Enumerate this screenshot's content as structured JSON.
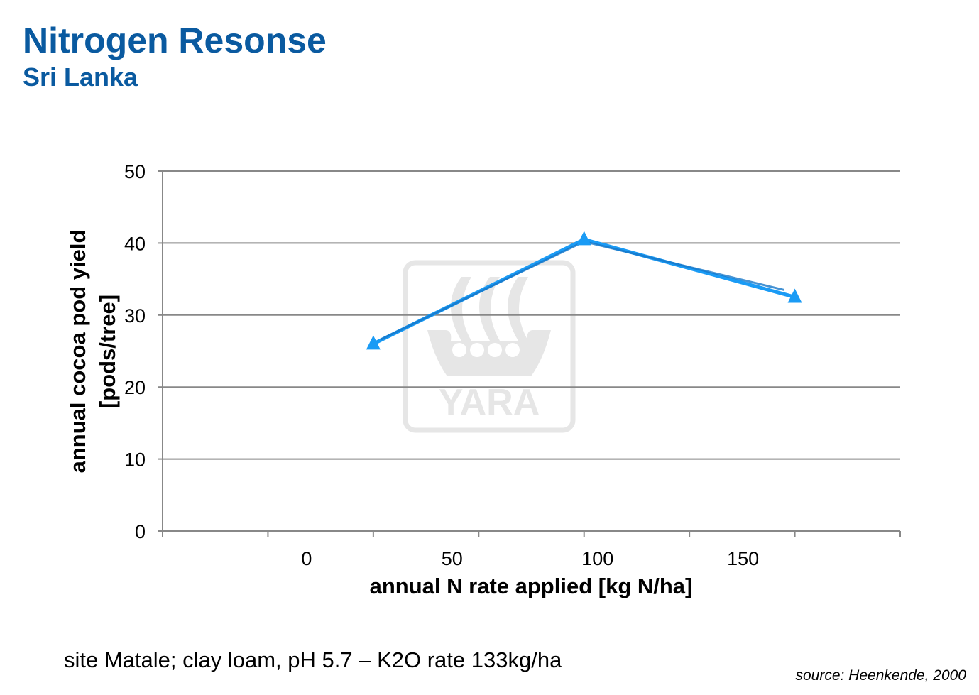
{
  "title": "Nitrogen Resonse",
  "subtitle": "Sri Lanka",
  "note": "site Matale; clay loam, pH 5.7 – K2O rate 133kg/ha",
  "source": "source: Heenkende, 2000",
  "watermark": {
    "text": "YARA"
  },
  "colors": {
    "title": "#0a5aa0",
    "series": "#1a9bf5",
    "series_dark": "#1677c8",
    "grid": "#888888",
    "watermark": "#e6e6e6"
  },
  "chart_data": {
    "type": "line",
    "title": "",
    "xlabel": "annual N rate applied [kg N/ha]",
    "ylabel": "annual cocoa pod yield [pods/tree]",
    "ylim": [
      0,
      50
    ],
    "yticks": [
      0,
      10,
      20,
      30,
      40,
      50
    ],
    "xlim": [
      -50,
      212.5
    ],
    "xtick_labels": [
      "0",
      "50",
      "100",
      "150"
    ],
    "xtick_label_values": [
      0,
      50,
      100,
      150
    ],
    "grid": "horizontal",
    "marker": "triangle",
    "series": [
      {
        "x": [
          25,
          100,
          175
        ],
        "y": [
          26,
          40.5,
          32.5
        ]
      }
    ]
  }
}
